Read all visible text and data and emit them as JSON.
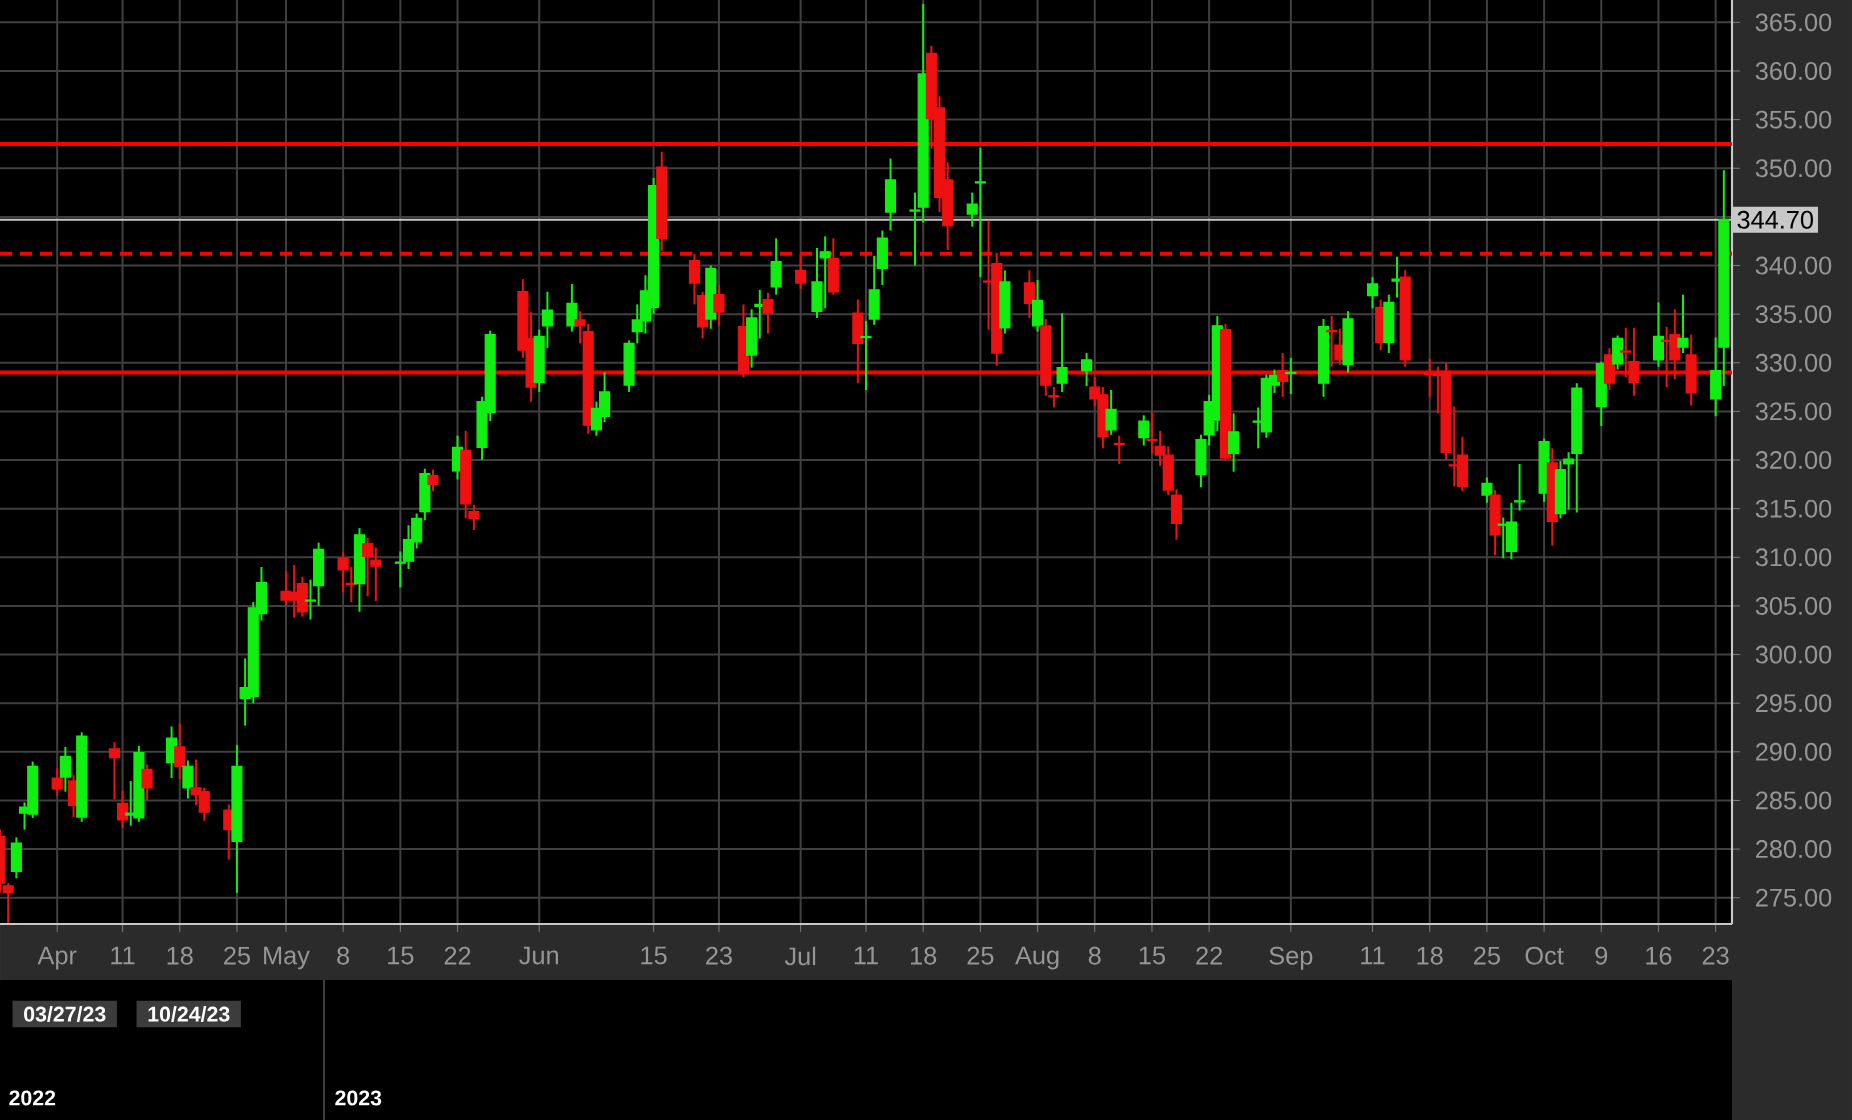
{
  "chart_data": {
    "type": "candlestick",
    "x": [
      "2023-03-27",
      "2023-03-28",
      "2023-03-29",
      "2023-03-30",
      "2023-03-31",
      "2023-04-03",
      "2023-04-04",
      "2023-04-05",
      "2023-04-06",
      "2023-04-10",
      "2023-04-11",
      "2023-04-12",
      "2023-04-13",
      "2023-04-14",
      "2023-04-17",
      "2023-04-18",
      "2023-04-19",
      "2023-04-20",
      "2023-04-21",
      "2023-04-24",
      "2023-04-25",
      "2023-04-26",
      "2023-04-27",
      "2023-04-28",
      "2023-05-01",
      "2023-05-02",
      "2023-05-03",
      "2023-05-04",
      "2023-05-05",
      "2023-05-08",
      "2023-05-09",
      "2023-05-10",
      "2023-05-11",
      "2023-05-12",
      "2023-05-15",
      "2023-05-16",
      "2023-05-17",
      "2023-05-18",
      "2023-05-19",
      "2023-05-22",
      "2023-05-23",
      "2023-05-24",
      "2023-05-25",
      "2023-05-26",
      "2023-05-30",
      "2023-05-31",
      "2023-06-01",
      "2023-06-02",
      "2023-06-05",
      "2023-06-06",
      "2023-06-07",
      "2023-06-08",
      "2023-06-09",
      "2023-06-12",
      "2023-06-13",
      "2023-06-14",
      "2023-06-15",
      "2023-06-16",
      "2023-06-20",
      "2023-06-21",
      "2023-06-22",
      "2023-06-23",
      "2023-06-26",
      "2023-06-27",
      "2023-06-28",
      "2023-06-29",
      "2023-06-30",
      "2023-07-03",
      "2023-07-05",
      "2023-07-06",
      "2023-07-07",
      "2023-07-10",
      "2023-07-11",
      "2023-07-12",
      "2023-07-13",
      "2023-07-14",
      "2023-07-17",
      "2023-07-18",
      "2023-07-19",
      "2023-07-20",
      "2023-07-21",
      "2023-07-24",
      "2023-07-25",
      "2023-07-26",
      "2023-07-27",
      "2023-07-28",
      "2023-07-31",
      "2023-08-01",
      "2023-08-02",
      "2023-08-03",
      "2023-08-04",
      "2023-08-07",
      "2023-08-08",
      "2023-08-09",
      "2023-08-10",
      "2023-08-11",
      "2023-08-14",
      "2023-08-15",
      "2023-08-16",
      "2023-08-17",
      "2023-08-18",
      "2023-08-21",
      "2023-08-22",
      "2023-08-23",
      "2023-08-24",
      "2023-08-25",
      "2023-08-28",
      "2023-08-29",
      "2023-08-30",
      "2023-08-31",
      "2023-09-01",
      "2023-09-05",
      "2023-09-06",
      "2023-09-07",
      "2023-09-08",
      "2023-09-11",
      "2023-09-12",
      "2023-09-13",
      "2023-09-14",
      "2023-09-15",
      "2023-09-18",
      "2023-09-19",
      "2023-09-20",
      "2023-09-21",
      "2023-09-22",
      "2023-09-25",
      "2023-09-26",
      "2023-09-27",
      "2023-09-28",
      "2023-09-29",
      "2023-10-02",
      "2023-10-03",
      "2023-10-04",
      "2023-10-05",
      "2023-10-06",
      "2023-10-09",
      "2023-10-10",
      "2023-10-11",
      "2023-10-12",
      "2023-10-13",
      "2023-10-16",
      "2023-10-17",
      "2023-10-18",
      "2023-10-19",
      "2023-10-20",
      "2023-10-23",
      "2023-10-24"
    ],
    "ohlc": [
      [
        281.3,
        282.0,
        275.5,
        276.5
      ],
      [
        276.2,
        276.5,
        272.4,
        275.5
      ],
      [
        277.7,
        281.2,
        277.0,
        280.6
      ],
      [
        283.7,
        284.8,
        282.0,
        284.3
      ],
      [
        283.6,
        289.0,
        283.2,
        288.5
      ],
      [
        287.3,
        288.3,
        285.5,
        286.2
      ],
      [
        287.4,
        290.5,
        285.9,
        289.5
      ],
      [
        287.0,
        287.6,
        283.3,
        284.5
      ],
      [
        283.3,
        292.0,
        282.8,
        291.6
      ],
      [
        290.3,
        291.0,
        285.1,
        289.4
      ],
      [
        284.7,
        286.0,
        282.2,
        283.0
      ],
      [
        283.5,
        287.0,
        282.4,
        283.7
      ],
      [
        283.2,
        290.6,
        282.8,
        289.9
      ],
      [
        288.2,
        288.7,
        285.0,
        286.3
      ],
      [
        288.9,
        292.6,
        287.3,
        291.4
      ],
      [
        290.5,
        292.9,
        287.2,
        288.5
      ],
      [
        286.3,
        289.1,
        285.2,
        288.5
      ],
      [
        286.3,
        289.2,
        284.5,
        285.6
      ],
      [
        285.9,
        286.3,
        282.9,
        283.8
      ],
      [
        284.0,
        284.6,
        278.9,
        282.0
      ],
      [
        280.8,
        290.7,
        275.5,
        288.5
      ],
      [
        295.5,
        299.6,
        292.7,
        296.6
      ],
      [
        295.7,
        305.4,
        295.0,
        304.8
      ],
      [
        304.2,
        309.0,
        303.5,
        307.4
      ],
      [
        306.5,
        308.6,
        305.0,
        305.6
      ],
      [
        306.4,
        309.2,
        303.8,
        305.6
      ],
      [
        307.3,
        308.0,
        303.9,
        304.4
      ],
      [
        305.5,
        307.7,
        303.6,
        305.6
      ],
      [
        307.1,
        311.5,
        305.0,
        310.8
      ],
      [
        309.9,
        310.5,
        306.4,
        308.7
      ],
      [
        307.3,
        309.0,
        305.4,
        307.2
      ],
      [
        307.3,
        313.0,
        304.4,
        312.3
      ],
      [
        311.4,
        312.0,
        306.0,
        310.1
      ],
      [
        309.7,
        311.0,
        305.5,
        309.1
      ],
      [
        309.4,
        310.6,
        306.9,
        309.5
      ],
      [
        309.6,
        313.3,
        308.8,
        311.8
      ],
      [
        311.6,
        314.5,
        310.9,
        314.0
      ],
      [
        314.7,
        319.1,
        313.8,
        318.6
      ],
      [
        318.4,
        319.0,
        316.8,
        317.5
      ],
      [
        318.9,
        322.5,
        318.0,
        321.3
      ],
      [
        321.0,
        323.0,
        314.0,
        315.5
      ],
      [
        314.7,
        315.4,
        312.8,
        314.0
      ],
      [
        321.3,
        326.5,
        320.0,
        326.0
      ],
      [
        324.9,
        333.3,
        324.0,
        332.9
      ],
      [
        337.3,
        338.6,
        330.5,
        331.3
      ],
      [
        332.5,
        335.2,
        326.0,
        327.5
      ],
      [
        328.0,
        333.4,
        327.0,
        332.7
      ],
      [
        333.8,
        337.3,
        331.5,
        335.4
      ],
      [
        333.8,
        338.1,
        333.2,
        336.1
      ],
      [
        334.4,
        335.3,
        332.0,
        333.8
      ],
      [
        333.2,
        334.0,
        322.7,
        323.6
      ],
      [
        323.1,
        326.0,
        322.5,
        325.3
      ],
      [
        324.5,
        329.0,
        323.9,
        327.0
      ],
      [
        327.7,
        332.3,
        327.0,
        332.0
      ],
      [
        333.2,
        336.0,
        332.0,
        334.4
      ],
      [
        334.3,
        339.0,
        333.0,
        337.4
      ],
      [
        335.7,
        349.0,
        335.0,
        348.2
      ],
      [
        350.1,
        351.7,
        341.5,
        342.8
      ],
      [
        340.5,
        341.2,
        336.0,
        338.2
      ],
      [
        336.9,
        337.3,
        332.5,
        333.7
      ],
      [
        334.5,
        340.0,
        333.5,
        339.7
      ],
      [
        337.0,
        338.0,
        333.8,
        335.2
      ],
      [
        333.7,
        336.0,
        328.5,
        328.9
      ],
      [
        330.8,
        335.5,
        329.5,
        334.6
      ],
      [
        335.8,
        337.5,
        332.5,
        336.0
      ],
      [
        336.5,
        337.2,
        333.0,
        335.1
      ],
      [
        337.8,
        342.8,
        337.0,
        340.4
      ],
      [
        339.5,
        341.2,
        337.6,
        338.2
      ],
      [
        335.3,
        341.8,
        334.6,
        338.3
      ],
      [
        340.8,
        343.0,
        335.6,
        341.4
      ],
      [
        340.7,
        342.8,
        337.0,
        337.3
      ],
      [
        335.1,
        336.5,
        327.9,
        332.0
      ],
      [
        332.6,
        334.3,
        327.2,
        332.7
      ],
      [
        334.5,
        341.0,
        333.9,
        337.5
      ],
      [
        339.7,
        343.6,
        338.0,
        342.8
      ],
      [
        345.5,
        351.0,
        343.6,
        348.8
      ],
      [
        345.6,
        347.5,
        340.0,
        345.7
      ],
      [
        346.0,
        366.9,
        344.4,
        359.7
      ],
      [
        361.8,
        362.6,
        352.0,
        355.1
      ],
      [
        356.2,
        357.4,
        345.5,
        347.0
      ],
      [
        348.8,
        350.6,
        341.6,
        344.1
      ],
      [
        345.3,
        347.5,
        344.0,
        346.3
      ],
      [
        348.5,
        352.1,
        338.8,
        348.6
      ],
      [
        338.4,
        344.6,
        333.4,
        338.3
      ],
      [
        340.2,
        341.3,
        329.7,
        331.0
      ],
      [
        333.6,
        339.5,
        333.0,
        338.3
      ],
      [
        338.2,
        339.5,
        334.6,
        336.1
      ],
      [
        333.8,
        338.5,
        333.2,
        336.4
      ],
      [
        333.8,
        334.5,
        326.6,
        327.7
      ],
      [
        326.6,
        327.5,
        325.4,
        326.5
      ],
      [
        327.9,
        335.1,
        327.0,
        329.5
      ],
      [
        329.2,
        331.0,
        327.6,
        330.3
      ],
      [
        327.5,
        328.5,
        325.5,
        326.3
      ],
      [
        326.7,
        327.5,
        321.2,
        322.4
      ],
      [
        323.1,
        327.2,
        322.6,
        325.2
      ],
      [
        321.7,
        322.5,
        319.6,
        321.6
      ],
      [
        322.3,
        324.6,
        321.5,
        324.0
      ],
      [
        322.1,
        325.0,
        320.7,
        322.0
      ],
      [
        321.4,
        323.0,
        319.4,
        320.5
      ],
      [
        320.5,
        321.4,
        316.4,
        316.9
      ],
      [
        316.4,
        317.0,
        311.8,
        313.5
      ],
      [
        318.5,
        322.6,
        317.2,
        322.1
      ],
      [
        322.6,
        326.7,
        321.5,
        326.0
      ],
      [
        324.1,
        334.8,
        323.0,
        333.8
      ],
      [
        333.4,
        334.0,
        320.0,
        320.2
      ],
      [
        320.7,
        324.8,
        318.8,
        322.9
      ],
      [
        323.9,
        325.4,
        321.2,
        324.0
      ],
      [
        322.9,
        328.8,
        322.3,
        328.4
      ],
      [
        327.7,
        329.3,
        326.9,
        328.7
      ],
      [
        329.2,
        331.0,
        326.5,
        328.1
      ],
      [
        328.9,
        330.5,
        326.8,
        329.0
      ],
      [
        327.9,
        334.5,
        326.5,
        333.7
      ],
      [
        333.3,
        334.8,
        329.6,
        333.2
      ],
      [
        331.8,
        333.5,
        329.8,
        330.3
      ],
      [
        329.8,
        335.3,
        329.0,
        334.5
      ],
      [
        336.9,
        338.8,
        335.6,
        338.1
      ],
      [
        335.7,
        336.5,
        331.3,
        332.1
      ],
      [
        332.1,
        337.0,
        331.0,
        336.2
      ],
      [
        338.4,
        340.9,
        336.7,
        338.6
      ],
      [
        338.8,
        339.5,
        329.6,
        330.3
      ],
      [
        328.9,
        330.4,
        326.5,
        328.8
      ],
      [
        328.9,
        329.6,
        324.8,
        328.7
      ],
      [
        329.1,
        330.0,
        320.0,
        320.8
      ],
      [
        319.5,
        325.5,
        317.3,
        319.4
      ],
      [
        320.5,
        322.4,
        316.8,
        317.3
      ],
      [
        316.4,
        318.2,
        315.6,
        317.6
      ],
      [
        316.4,
        316.9,
        310.2,
        312.3
      ],
      [
        313.3,
        314.1,
        309.9,
        313.4
      ],
      [
        310.6,
        315.6,
        309.8,
        313.6
      ],
      [
        315.7,
        319.6,
        314.8,
        315.8
      ],
      [
        316.6,
        322.2,
        315.7,
        321.9
      ],
      [
        319.7,
        321.2,
        311.2,
        313.7
      ],
      [
        314.5,
        319.9,
        314.0,
        319.0
      ],
      [
        319.6,
        320.8,
        314.9,
        320.1
      ],
      [
        320.7,
        327.9,
        314.6,
        327.4
      ],
      [
        325.5,
        330.1,
        323.5,
        329.9
      ],
      [
        330.8,
        331.5,
        327.2,
        327.9
      ],
      [
        329.9,
        332.8,
        329.3,
        332.5
      ],
      [
        331.2,
        333.6,
        328.5,
        331.1
      ],
      [
        330.1,
        333.6,
        326.6,
        328.0
      ],
      [
        330.3,
        336.2,
        329.6,
        332.7
      ],
      [
        332.3,
        333.7,
        327.5,
        332.2
      ],
      [
        332.9,
        335.5,
        328.3,
        330.3
      ],
      [
        331.6,
        337.0,
        331.0,
        332.5
      ],
      [
        330.8,
        332.9,
        325.6,
        326.9
      ],
      [
        326.3,
        332.6,
        324.5,
        329.2
      ],
      [
        331.6,
        349.8,
        327.6,
        344.7
      ]
    ],
    "xlim": [
      "2023-03-27",
      "2023-10-25"
    ],
    "xticks": [
      {
        "value": "2023-04-03",
        "label": "Apr"
      },
      {
        "value": "2023-04-11",
        "label": "11"
      },
      {
        "value": "2023-04-18",
        "label": "18"
      },
      {
        "value": "2023-04-25",
        "label": "25"
      },
      {
        "value": "2023-05-01",
        "label": "May"
      },
      {
        "value": "2023-05-08",
        "label": "8"
      },
      {
        "value": "2023-05-15",
        "label": "15"
      },
      {
        "value": "2023-05-22",
        "label": "22"
      },
      {
        "value": "2023-06-01",
        "label": "Jun"
      },
      {
        "value": "2023-06-15",
        "label": "15"
      },
      {
        "value": "2023-06-23",
        "label": "23"
      },
      {
        "value": "2023-07-03",
        "label": "Jul"
      },
      {
        "value": "2023-07-11",
        "label": "11"
      },
      {
        "value": "2023-07-18",
        "label": "18"
      },
      {
        "value": "2023-07-25",
        "label": "25"
      },
      {
        "value": "2023-08-01",
        "label": "Aug"
      },
      {
        "value": "2023-08-08",
        "label": "8"
      },
      {
        "value": "2023-08-15",
        "label": "15"
      },
      {
        "value": "2023-08-22",
        "label": "22"
      },
      {
        "value": "2023-09-01",
        "label": "Sep"
      },
      {
        "value": "2023-09-11",
        "label": "11"
      },
      {
        "value": "2023-09-18",
        "label": "18"
      },
      {
        "value": "2023-09-25",
        "label": "25"
      },
      {
        "value": "2023-10-02",
        "label": "Oct"
      },
      {
        "value": "2023-10-09",
        "label": "9"
      },
      {
        "value": "2023-10-16",
        "label": "16"
      },
      {
        "value": "2023-10-23",
        "label": "23"
      }
    ],
    "ylim": [
      272.3,
      367.3
    ],
    "yticks": [
      {
        "value": 275,
        "label": "275.00"
      },
      {
        "value": 280,
        "label": "280.00"
      },
      {
        "value": 285,
        "label": "285.00"
      },
      {
        "value": 290,
        "label": "290.00"
      },
      {
        "value": 295,
        "label": "295.00"
      },
      {
        "value": 300,
        "label": "300.00"
      },
      {
        "value": 305,
        "label": "305.00"
      },
      {
        "value": 310,
        "label": "310.00"
      },
      {
        "value": 315,
        "label": "315.00"
      },
      {
        "value": 320,
        "label": "320.00"
      },
      {
        "value": 325,
        "label": "325.00"
      },
      {
        "value": 330,
        "label": "330.00"
      },
      {
        "value": 335,
        "label": "335.00"
      },
      {
        "value": 340,
        "label": "340.00"
      },
      {
        "value": 345,
        "label": null
      },
      {
        "value": 350,
        "label": "350.00"
      },
      {
        "value": 355,
        "label": "355.00"
      },
      {
        "value": 360,
        "label": "360.00"
      },
      {
        "value": 365,
        "label": "365.00"
      }
    ],
    "ref_lines": [
      {
        "axis": "y",
        "value": 352.5,
        "color": "#ff0000",
        "line_style": "solid"
      },
      {
        "axis": "y",
        "value": 341.2,
        "color": "#ff0000",
        "line_style": "dashed"
      },
      {
        "axis": "y",
        "value": 329.0,
        "color": "#ff0000",
        "line_style": "solid"
      },
      {
        "axis": "y",
        "value": 344.7,
        "label": "344.70",
        "color": "#c8c8c8",
        "line_style": "solid"
      }
    ],
    "grid": true,
    "annotations": [
      "03/27/23",
      "10/24/23",
      "2022",
      "2023"
    ]
  }
}
